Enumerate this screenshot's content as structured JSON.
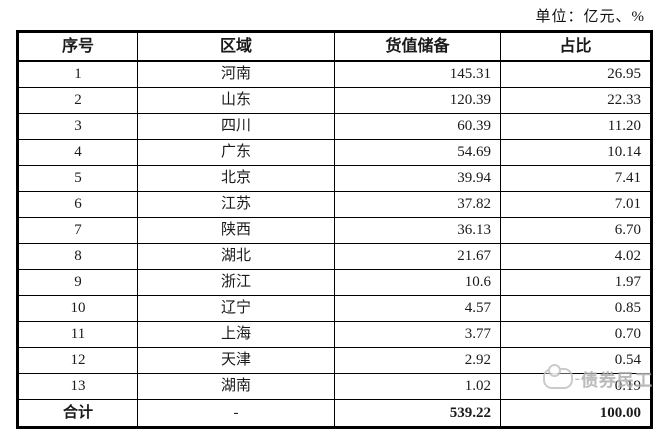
{
  "unit_label": "单位：亿元、%",
  "colors": {
    "border": "#000000",
    "text": "#1a1a1a",
    "background": "#ffffff",
    "watermark": "#aeaeae"
  },
  "table": {
    "columns": [
      "序号",
      "区域",
      "货值储备",
      "占比"
    ],
    "rows": [
      {
        "no": "1",
        "region": "河南",
        "value": "145.31",
        "share": "26.95"
      },
      {
        "no": "2",
        "region": "山东",
        "value": "120.39",
        "share": "22.33"
      },
      {
        "no": "3",
        "region": "四川",
        "value": "60.39",
        "share": "11.20"
      },
      {
        "no": "4",
        "region": "广东",
        "value": "54.69",
        "share": "10.14"
      },
      {
        "no": "5",
        "region": "北京",
        "value": "39.94",
        "share": "7.41"
      },
      {
        "no": "6",
        "region": "江苏",
        "value": "37.82",
        "share": "7.01"
      },
      {
        "no": "7",
        "region": "陕西",
        "value": "36.13",
        "share": "6.70"
      },
      {
        "no": "8",
        "region": "湖北",
        "value": "21.67",
        "share": "4.02"
      },
      {
        "no": "9",
        "region": "浙江",
        "value": "10.6",
        "share": "1.97"
      },
      {
        "no": "10",
        "region": "辽宁",
        "value": "4.57",
        "share": "0.85"
      },
      {
        "no": "11",
        "region": "上海",
        "value": "3.77",
        "share": "0.70"
      },
      {
        "no": "12",
        "region": "天津",
        "value": "2.92",
        "share": "0.54"
      },
      {
        "no": "13",
        "region": "湖南",
        "value": "1.02",
        "share": "0.19"
      }
    ],
    "total": {
      "no": "合计",
      "region": "-",
      "value": "539.22",
      "share": "100.00"
    }
  },
  "watermark": {
    "text": "债券民工"
  }
}
